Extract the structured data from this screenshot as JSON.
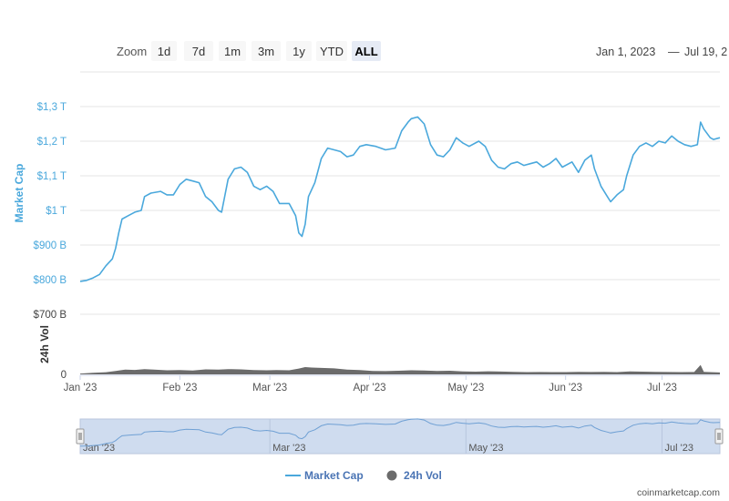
{
  "toolbar": {
    "zoom_label": "Zoom",
    "buttons": [
      "1d",
      "7d",
      "1m",
      "3m",
      "1y",
      "YTD",
      "ALL"
    ],
    "active_button": "ALL",
    "range_from": "Jan 1, 2023",
    "range_separator": "—",
    "range_to": "Jul 19, 2"
  },
  "colors": {
    "market_cap": "#4aa8dc",
    "volume": "#6b6b6b",
    "navigator_fill": "#cfdcef",
    "navigator_line": "#6fa0d4",
    "legend_text": "#4a74b4"
  },
  "chart_data": {
    "type": "line",
    "x_range": [
      "2023-01-01",
      "2023-07-19"
    ],
    "x_tick_labels": [
      "Jan '23",
      "Feb '23",
      "Mar '23",
      "Apr '23",
      "May '23",
      "Jun '23",
      "Jul '23"
    ],
    "series": [
      {
        "name": "Market Cap",
        "unit": "USD",
        "axis": "left-top",
        "ylim": [
          800000000000,
          1300000000000
        ],
        "y_tick_labels": [
          "$800 B",
          "$900 B",
          "$1 T",
          "$1,1 T",
          "$1,2 T",
          "$1,3 T"
        ],
        "axis_title": "Market Cap",
        "points": [
          [
            "2023-01-01",
            795
          ],
          [
            "2023-01-03",
            798
          ],
          [
            "2023-01-05",
            805
          ],
          [
            "2023-01-07",
            815
          ],
          [
            "2023-01-09",
            840
          ],
          [
            "2023-01-11",
            860
          ],
          [
            "2023-01-12",
            890
          ],
          [
            "2023-01-13",
            935
          ],
          [
            "2023-01-14",
            975
          ],
          [
            "2023-01-16",
            985
          ],
          [
            "2023-01-18",
            995
          ],
          [
            "2023-01-20",
            1000
          ],
          [
            "2023-01-21",
            1040
          ],
          [
            "2023-01-23",
            1050
          ],
          [
            "2023-01-26",
            1055
          ],
          [
            "2023-01-28",
            1045
          ],
          [
            "2023-01-30",
            1045
          ],
          [
            "2023-02-01",
            1075
          ],
          [
            "2023-02-03",
            1090
          ],
          [
            "2023-02-05",
            1085
          ],
          [
            "2023-02-07",
            1080
          ],
          [
            "2023-02-09",
            1040
          ],
          [
            "2023-02-11",
            1025
          ],
          [
            "2023-02-13",
            1000
          ],
          [
            "2023-02-14",
            995
          ],
          [
            "2023-02-16",
            1090
          ],
          [
            "2023-02-18",
            1120
          ],
          [
            "2023-02-20",
            1125
          ],
          [
            "2023-02-22",
            1110
          ],
          [
            "2023-02-24",
            1070
          ],
          [
            "2023-02-26",
            1060
          ],
          [
            "2023-02-28",
            1070
          ],
          [
            "2023-03-02",
            1055
          ],
          [
            "2023-03-04",
            1020
          ],
          [
            "2023-03-07",
            1020
          ],
          [
            "2023-03-09",
            985
          ],
          [
            "2023-03-10",
            935
          ],
          [
            "2023-03-11",
            925
          ],
          [
            "2023-03-12",
            960
          ],
          [
            "2023-03-13",
            1040
          ],
          [
            "2023-03-15",
            1080
          ],
          [
            "2023-03-17",
            1150
          ],
          [
            "2023-03-19",
            1180
          ],
          [
            "2023-03-21",
            1175
          ],
          [
            "2023-03-23",
            1170
          ],
          [
            "2023-03-25",
            1155
          ],
          [
            "2023-03-27",
            1160
          ],
          [
            "2023-03-29",
            1185
          ],
          [
            "2023-03-31",
            1190
          ],
          [
            "2023-04-03",
            1185
          ],
          [
            "2023-04-06",
            1175
          ],
          [
            "2023-04-09",
            1180
          ],
          [
            "2023-04-11",
            1230
          ],
          [
            "2023-04-13",
            1255
          ],
          [
            "2023-04-14",
            1265
          ],
          [
            "2023-04-16",
            1270
          ],
          [
            "2023-04-18",
            1250
          ],
          [
            "2023-04-20",
            1190
          ],
          [
            "2023-04-22",
            1160
          ],
          [
            "2023-04-24",
            1155
          ],
          [
            "2023-04-26",
            1175
          ],
          [
            "2023-04-28",
            1210
          ],
          [
            "2023-04-30",
            1195
          ],
          [
            "2023-05-02",
            1185
          ],
          [
            "2023-05-05",
            1200
          ],
          [
            "2023-05-07",
            1185
          ],
          [
            "2023-05-09",
            1145
          ],
          [
            "2023-05-11",
            1125
          ],
          [
            "2023-05-13",
            1120
          ],
          [
            "2023-05-15",
            1135
          ],
          [
            "2023-05-17",
            1140
          ],
          [
            "2023-05-19",
            1130
          ],
          [
            "2023-05-21",
            1135
          ],
          [
            "2023-05-23",
            1140
          ],
          [
            "2023-05-25",
            1125
          ],
          [
            "2023-05-27",
            1135
          ],
          [
            "2023-05-29",
            1150
          ],
          [
            "2023-05-31",
            1125
          ],
          [
            "2023-06-03",
            1140
          ],
          [
            "2023-06-05",
            1110
          ],
          [
            "2023-06-07",
            1145
          ],
          [
            "2023-06-09",
            1160
          ],
          [
            "2023-06-10",
            1120
          ],
          [
            "2023-06-12",
            1070
          ],
          [
            "2023-06-14",
            1040
          ],
          [
            "2023-06-15",
            1025
          ],
          [
            "2023-06-17",
            1045
          ],
          [
            "2023-06-19",
            1060
          ],
          [
            "2023-06-20",
            1100
          ],
          [
            "2023-06-22",
            1160
          ],
          [
            "2023-06-24",
            1185
          ],
          [
            "2023-06-26",
            1195
          ],
          [
            "2023-06-28",
            1185
          ],
          [
            "2023-06-30",
            1200
          ],
          [
            "2023-07-02",
            1195
          ],
          [
            "2023-07-04",
            1215
          ],
          [
            "2023-07-06",
            1200
          ],
          [
            "2023-07-08",
            1190
          ],
          [
            "2023-07-10",
            1185
          ],
          [
            "2023-07-12",
            1190
          ],
          [
            "2023-07-13",
            1255
          ],
          [
            "2023-07-14",
            1235
          ],
          [
            "2023-07-16",
            1210
          ],
          [
            "2023-07-17",
            1205
          ],
          [
            "2023-07-19",
            1210
          ]
        ]
      },
      {
        "name": "24h Vol",
        "unit": "USD",
        "axis": "left-bottom",
        "ylim": [
          0,
          700000000000
        ],
        "y_tick_labels": [
          "0",
          "$700 B"
        ],
        "axis_title": "24h Vol",
        "points": [
          [
            "2023-01-01",
            10
          ],
          [
            "2023-01-05",
            18
          ],
          [
            "2023-01-09",
            25
          ],
          [
            "2023-01-13",
            45
          ],
          [
            "2023-01-15",
            55
          ],
          [
            "2023-01-18",
            52
          ],
          [
            "2023-01-21",
            60
          ],
          [
            "2023-01-24",
            55
          ],
          [
            "2023-01-28",
            48
          ],
          [
            "2023-02-01",
            50
          ],
          [
            "2023-02-05",
            45
          ],
          [
            "2023-02-09",
            58
          ],
          [
            "2023-02-13",
            55
          ],
          [
            "2023-02-16",
            62
          ],
          [
            "2023-02-20",
            58
          ],
          [
            "2023-02-24",
            50
          ],
          [
            "2023-02-28",
            48
          ],
          [
            "2023-03-03",
            50
          ],
          [
            "2023-03-07",
            48
          ],
          [
            "2023-03-10",
            68
          ],
          [
            "2023-03-12",
            85
          ],
          [
            "2023-03-14",
            80
          ],
          [
            "2023-03-17",
            75
          ],
          [
            "2023-03-21",
            70
          ],
          [
            "2023-03-25",
            55
          ],
          [
            "2023-03-29",
            50
          ],
          [
            "2023-04-02",
            40
          ],
          [
            "2023-04-06",
            38
          ],
          [
            "2023-04-10",
            42
          ],
          [
            "2023-04-14",
            48
          ],
          [
            "2023-04-18",
            45
          ],
          [
            "2023-04-22",
            40
          ],
          [
            "2023-04-26",
            42
          ],
          [
            "2023-04-30",
            35
          ],
          [
            "2023-05-04",
            32
          ],
          [
            "2023-05-08",
            36
          ],
          [
            "2023-05-12",
            33
          ],
          [
            "2023-05-16",
            30
          ],
          [
            "2023-05-20",
            26
          ],
          [
            "2023-05-24",
            28
          ],
          [
            "2023-05-28",
            26
          ],
          [
            "2023-06-01",
            26
          ],
          [
            "2023-06-05",
            30
          ],
          [
            "2023-06-09",
            28
          ],
          [
            "2023-06-13",
            30
          ],
          [
            "2023-06-17",
            26
          ],
          [
            "2023-06-21",
            35
          ],
          [
            "2023-06-25",
            32
          ],
          [
            "2023-06-29",
            30
          ],
          [
            "2023-07-03",
            28
          ],
          [
            "2023-07-07",
            26
          ],
          [
            "2023-07-11",
            28
          ],
          [
            "2023-07-13",
            110
          ],
          [
            "2023-07-14",
            30
          ],
          [
            "2023-07-17",
            25
          ],
          [
            "2023-07-19",
            22
          ]
        ]
      }
    ],
    "navigator": {
      "tick_labels": [
        "Jan '23",
        "Mar '23",
        "May '23",
        "Jul '23"
      ]
    },
    "legend": {
      "placement": "bottom-center",
      "items": [
        "Market Cap",
        "24h Vol"
      ]
    },
    "grid": true
  },
  "footer": {
    "credit": "coinmarketcap.com"
  }
}
